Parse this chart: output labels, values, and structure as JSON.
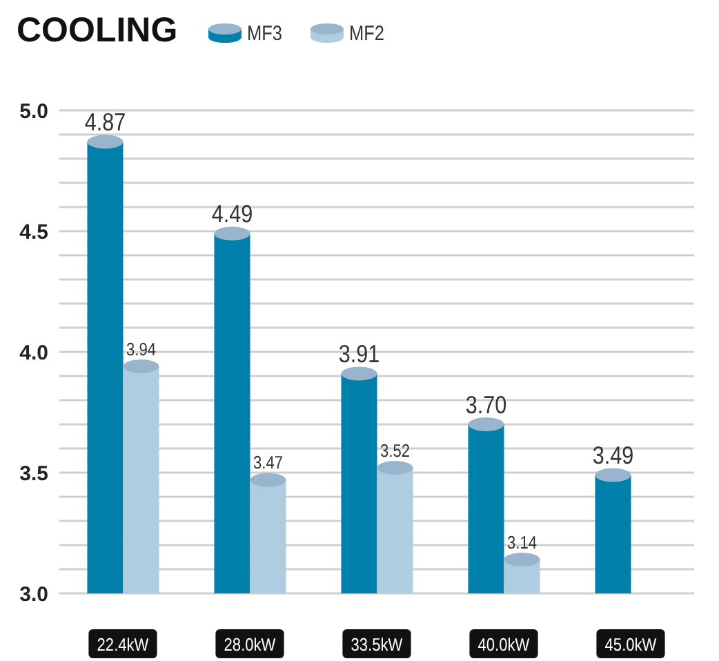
{
  "chart_data": {
    "type": "bar",
    "title": "COOLING",
    "categories": [
      "22.4kW",
      "28.0kW",
      "33.5kW",
      "40.0kW",
      "45.0kW"
    ],
    "series": [
      {
        "name": "MF3",
        "color": "#0080ab",
        "values": [
          4.87,
          4.49,
          3.91,
          3.7,
          3.49
        ],
        "value_labels": [
          "4.87",
          "4.49",
          "3.91",
          "3.70",
          "3.49"
        ]
      },
      {
        "name": "MF2",
        "color": "#aecde1",
        "values": [
          3.94,
          3.47,
          3.52,
          3.14,
          null
        ],
        "value_labels": [
          "3.94",
          "3.47",
          "3.52",
          "3.14",
          null
        ]
      }
    ],
    "ylim": [
      3,
      5
    ],
    "yticks": [
      {
        "value": 3,
        "label": "3.0"
      },
      {
        "value": 3.1,
        "label": null
      },
      {
        "value": 3.2,
        "label": null
      },
      {
        "value": 3.3,
        "label": null
      },
      {
        "value": 3.4,
        "label": null
      },
      {
        "value": 3.5,
        "label": "3.5"
      },
      {
        "value": 3.6,
        "label": null
      },
      {
        "value": 3.7,
        "label": null
      },
      {
        "value": 3.8,
        "label": null
      },
      {
        "value": 3.9,
        "label": null
      },
      {
        "value": 4,
        "label": "4.0"
      },
      {
        "value": 4.1,
        "label": null
      },
      {
        "value": 4.2,
        "label": null
      },
      {
        "value": 4.3,
        "label": null
      },
      {
        "value": 4.4,
        "label": null
      },
      {
        "value": 4.5,
        "label": "4.5"
      },
      {
        "value": 4.6,
        "label": null
      },
      {
        "value": 4.7,
        "label": null
      },
      {
        "value": 4.8,
        "label": null
      },
      {
        "value": 4.9,
        "label": null
      },
      {
        "value": 5,
        "label": "5.0"
      }
    ],
    "grid": "y",
    "legend": "top"
  }
}
